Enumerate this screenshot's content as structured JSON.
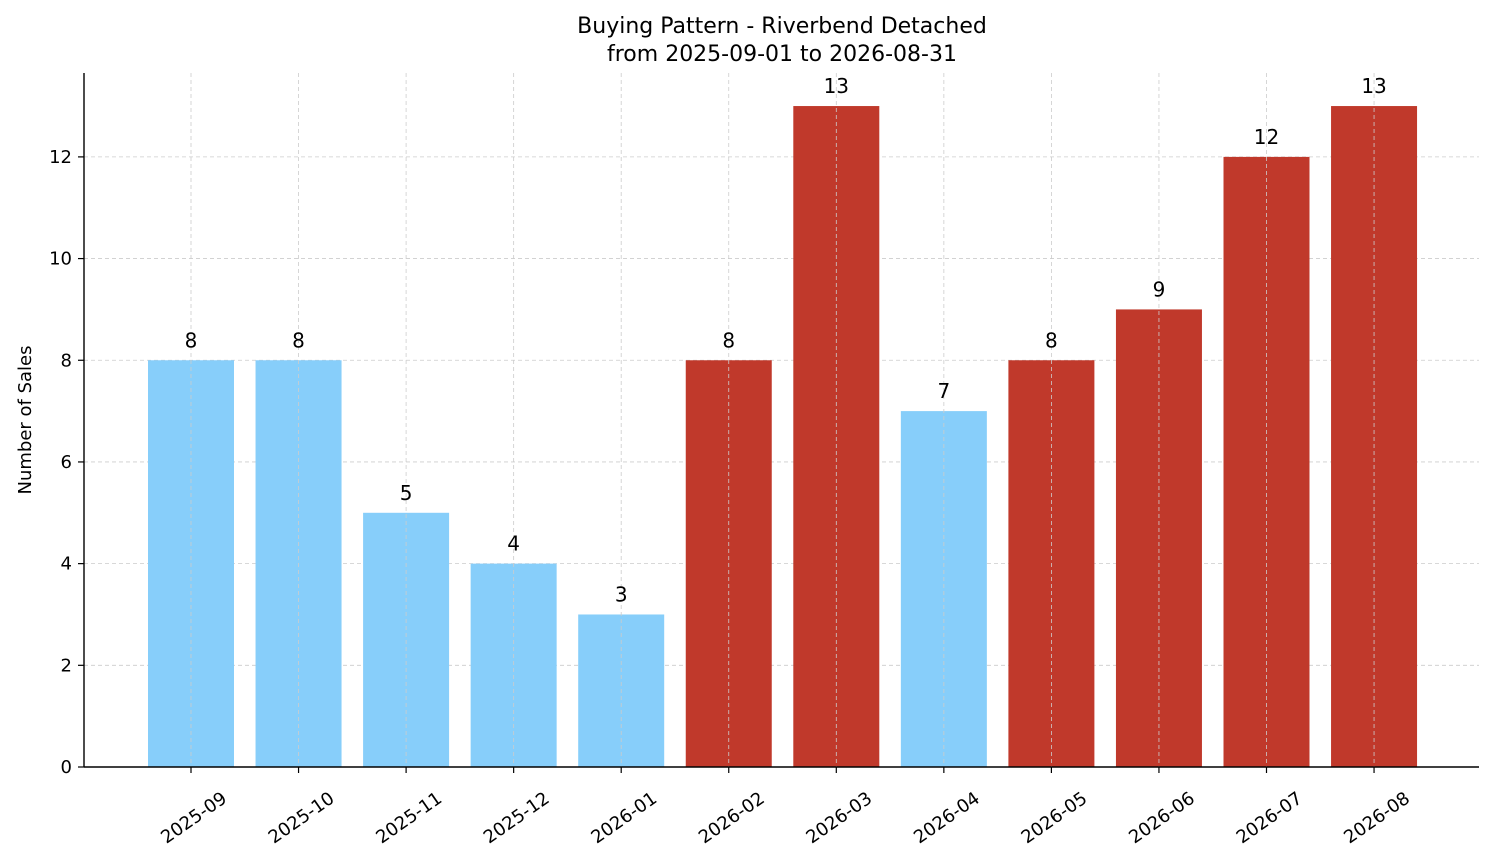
{
  "chart_data": {
    "type": "bar",
    "title": "Buying Pattern - Riverbend Detached",
    "subtitle": "from 2025-09-01 to 2026-08-31",
    "xlabel": "",
    "ylabel": "Number of Sales",
    "ylim": [
      0,
      13.65
    ],
    "yticks": [
      0,
      2,
      4,
      6,
      8,
      10,
      12
    ],
    "grid": true,
    "categories": [
      "2025-09",
      "2025-10",
      "2025-11",
      "2025-12",
      "2026-01",
      "2026-02",
      "2026-03",
      "2026-04",
      "2026-05",
      "2026-06",
      "2026-07",
      "2026-08"
    ],
    "values": [
      8,
      8,
      5,
      4,
      3,
      8,
      13,
      7,
      8,
      9,
      12,
      13
    ],
    "bar_colors": [
      "#87CEFA",
      "#87CEFA",
      "#87CEFA",
      "#87CEFA",
      "#87CEFA",
      "#C0392B",
      "#C0392B",
      "#87CEFA",
      "#C0392B",
      "#C0392B",
      "#C0392B",
      "#C0392B"
    ]
  }
}
